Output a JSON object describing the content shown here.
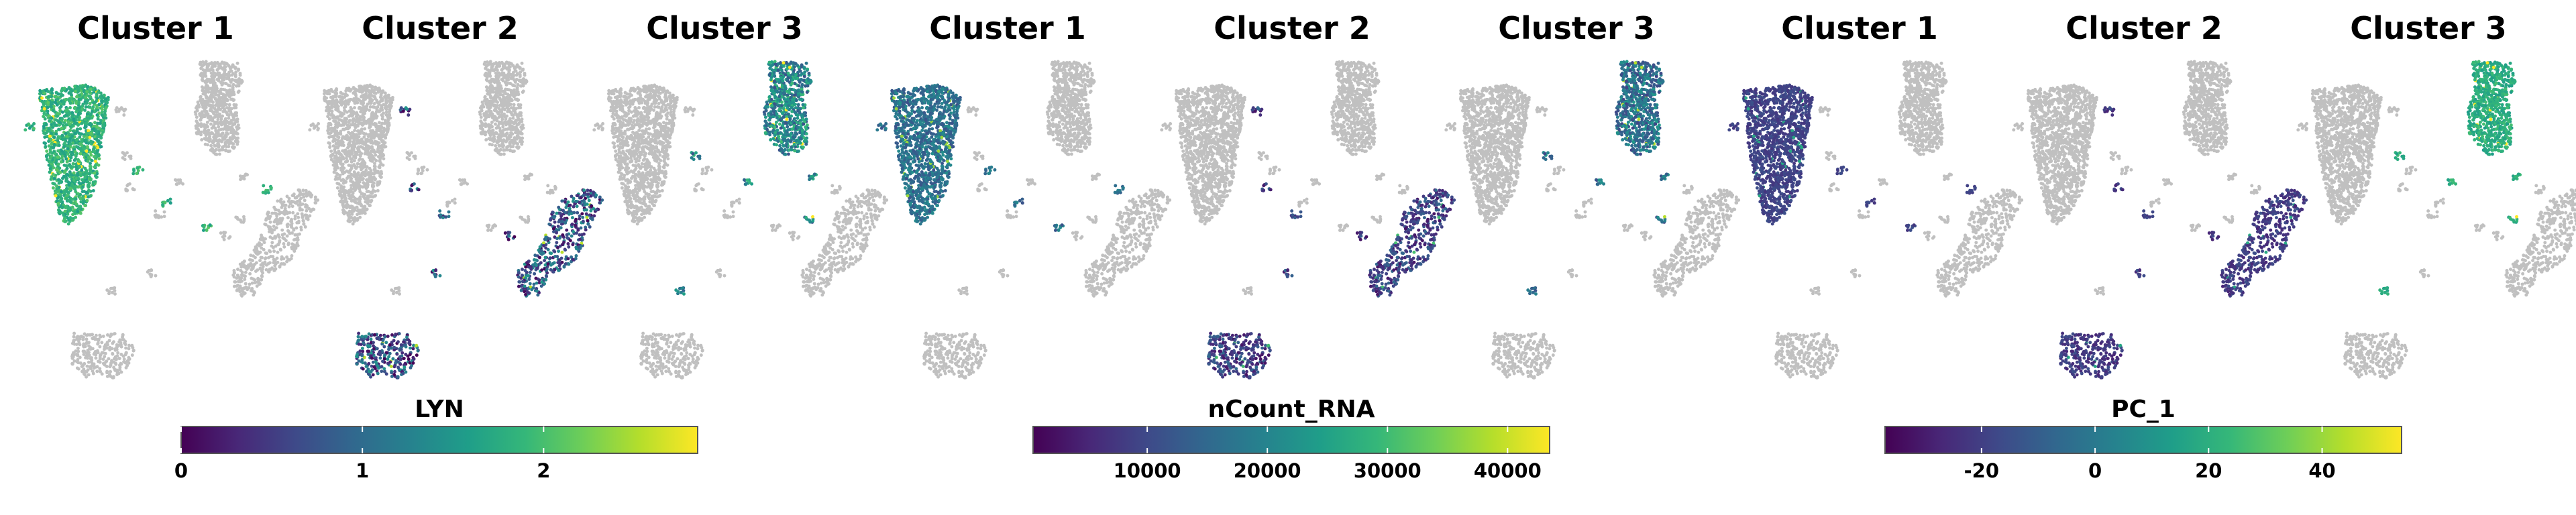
{
  "chart_data": {
    "type": "scatter",
    "description_kind": "UMAP feature plots split by cluster",
    "grid": false,
    "background_color": "#ffffff",
    "unselected_color": "#c0c0c0",
    "colormap": "viridis",
    "colormap_stops": [
      "#440154",
      "#482878",
      "#3e4a89",
      "#31688e",
      "#26828e",
      "#1f9e89",
      "#35b779",
      "#6ece58",
      "#b5de2b",
      "#fde725"
    ],
    "groups": [
      {
        "feature": "LYN",
        "panels": [
          {
            "title": "Cluster 1",
            "highlight": "cluster1"
          },
          {
            "title": "Cluster 2",
            "highlight": "cluster2"
          },
          {
            "title": "Cluster 3",
            "highlight": "cluster3"
          }
        ],
        "colorbar": {
          "label": "LYN",
          "min": 0,
          "max": 2.85,
          "ticks": [
            0,
            1,
            2
          ],
          "tick_labels": [
            "0",
            "1",
            "2"
          ]
        },
        "cluster_levels": {
          "cluster1": [
            0.55,
            0.75
          ],
          "cluster2": [
            0.0,
            0.55
          ],
          "cluster3": [
            0.25,
            0.7
          ]
        }
      },
      {
        "feature": "nCount_RNA",
        "panels": [
          {
            "title": "Cluster 1",
            "highlight": "cluster1"
          },
          {
            "title": "Cluster 2",
            "highlight": "cluster2"
          },
          {
            "title": "Cluster 3",
            "highlight": "cluster3"
          }
        ],
        "colorbar": {
          "label": "nCount_RNA",
          "min": 500,
          "max": 43500,
          "ticks": [
            10000,
            20000,
            30000,
            40000
          ],
          "tick_labels": [
            "10000",
            "20000",
            "30000",
            "40000"
          ]
        },
        "cluster_levels": {
          "cluster1": [
            0.25,
            0.5
          ],
          "cluster2": [
            0.05,
            0.35
          ],
          "cluster3": [
            0.2,
            0.55
          ]
        }
      },
      {
        "feature": "PC_1",
        "panels": [
          {
            "title": "Cluster 1",
            "highlight": "cluster1"
          },
          {
            "title": "Cluster 2",
            "highlight": "cluster2"
          },
          {
            "title": "Cluster 3",
            "highlight": "cluster3"
          }
        ],
        "colorbar": {
          "label": "PC_1",
          "min": -37,
          "max": 54,
          "ticks": [
            -20,
            0,
            20,
            40
          ],
          "tick_labels": [
            "-20",
            "0",
            "20",
            "40"
          ]
        },
        "cluster_levels": {
          "cluster1": [
            0.15,
            0.25
          ],
          "cluster2": [
            0.1,
            0.25
          ],
          "cluster3": [
            0.55,
            0.7
          ]
        }
      }
    ]
  }
}
